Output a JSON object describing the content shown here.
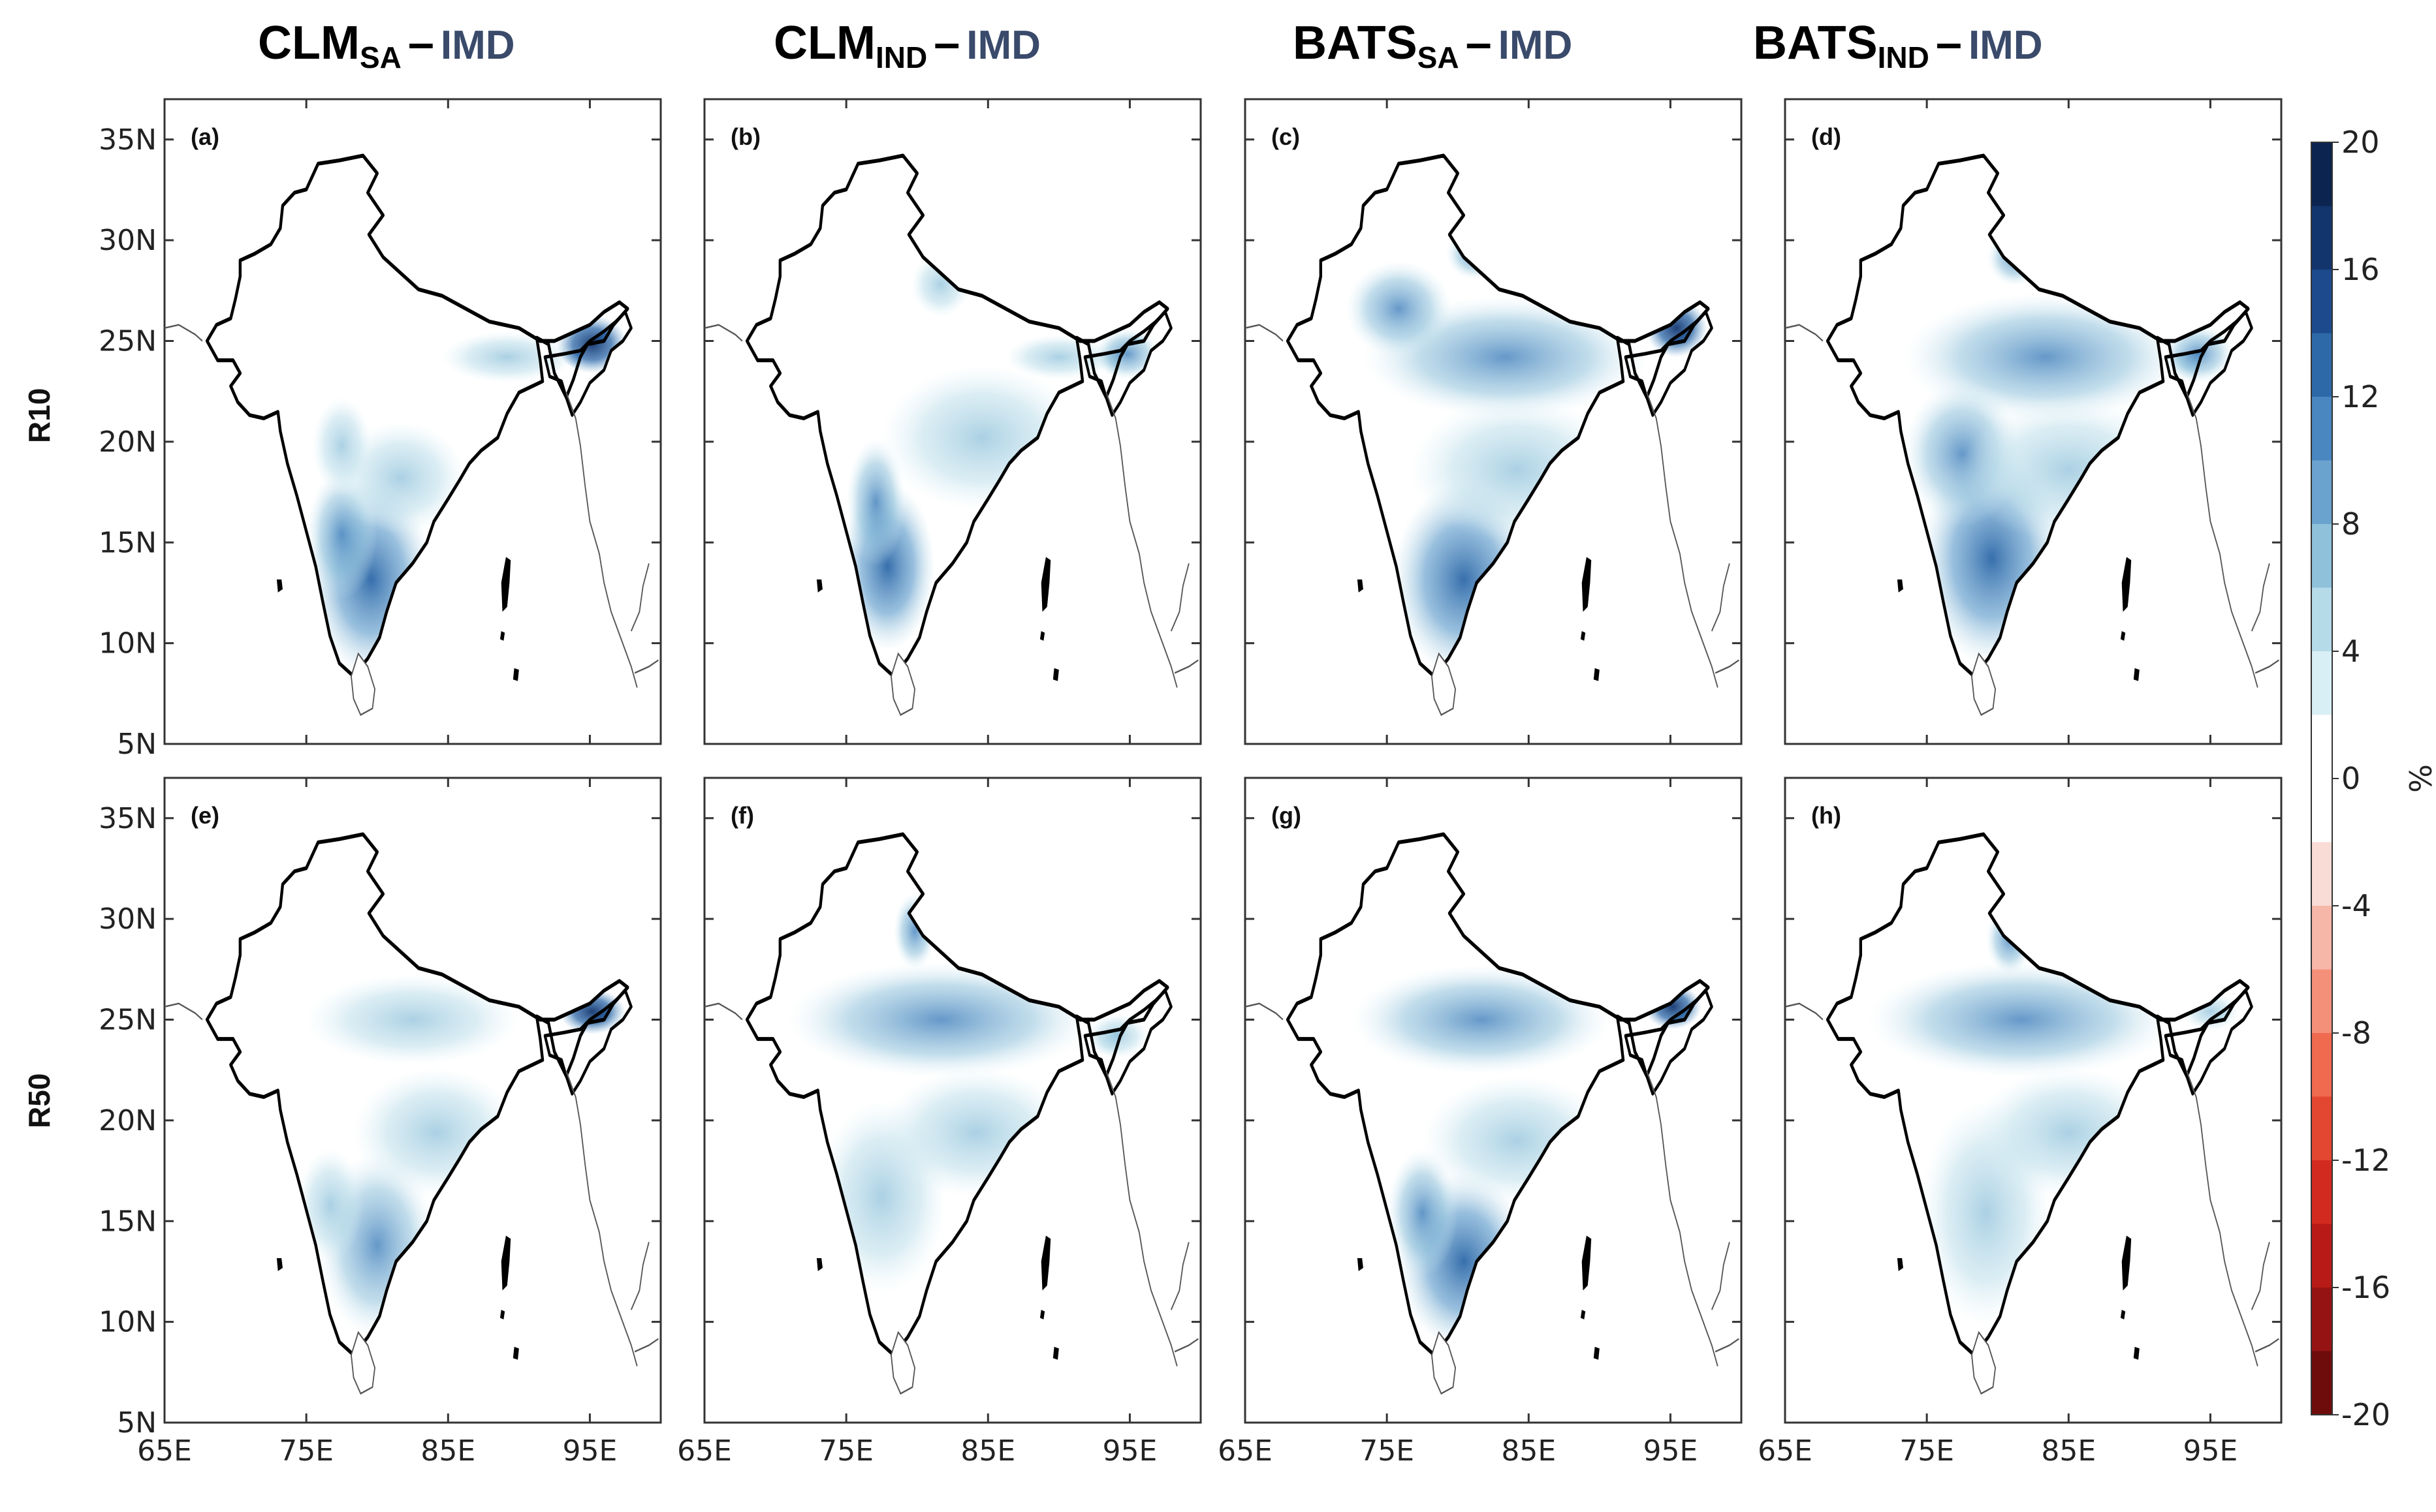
{
  "columns": [
    {
      "model": "CLM",
      "subscript": "SA",
      "separator": "–",
      "reference": "IMD"
    },
    {
      "model": "CLM",
      "subscript": "IND",
      "separator": "–",
      "reference": "IMD"
    },
    {
      "model": "BATS",
      "subscript": "SA",
      "separator": "–",
      "reference": "IMD"
    },
    {
      "model": "BATS",
      "subscript": "IND",
      "separator": "–",
      "reference": "IMD"
    }
  ],
  "rows": [
    {
      "label": "R10",
      "panels": [
        "(a)",
        "(b)",
        "(c)",
        "(d)"
      ]
    },
    {
      "label": "R50",
      "panels": [
        "(e)",
        "(f)",
        "(g)",
        "(h)"
      ]
    }
  ],
  "map": {
    "lon_range": [
      65,
      100
    ],
    "lat_range": [
      5,
      37
    ],
    "lon_ticks": [
      {
        "value": 65,
        "label": "65E"
      },
      {
        "value": 75,
        "label": "75E"
      },
      {
        "value": 85,
        "label": "85E"
      },
      {
        "value": 95,
        "label": "95E"
      }
    ],
    "lat_ticks": [
      {
        "value": 35,
        "label": "35N"
      },
      {
        "value": 30,
        "label": "30N"
      },
      {
        "value": 25,
        "label": "25N"
      },
      {
        "value": 20,
        "label": "20N"
      },
      {
        "value": 15,
        "label": "15N"
      },
      {
        "value": 10,
        "label": "10N"
      },
      {
        "value": 5,
        "label": "5N"
      }
    ]
  },
  "colorbar": {
    "unit": "%",
    "range": [
      -20,
      20
    ],
    "tick_labels": [
      "20",
      "16",
      "12",
      "8",
      "4",
      "0",
      "-4",
      "-8",
      "-12",
      "-16",
      "-20"
    ],
    "colors": [
      "#0b2450",
      "#12356e",
      "#1c4a8c",
      "#2d68a8",
      "#4a86bf",
      "#6ba3cf",
      "#8fc1db",
      "#b6dbe8",
      "#d9eff6",
      "#ffffff",
      "#ffffff",
      "#fadcd6",
      "#f7b7a8",
      "#f4907a",
      "#ef6a4f",
      "#e44731",
      "#d32a1f",
      "#b81b17",
      "#951313",
      "#6e0c0c"
    ]
  },
  "colors": {
    "land_fill": "#ffffff",
    "border": "#000000",
    "coast": "#555555",
    "frame": "#333333"
  }
}
